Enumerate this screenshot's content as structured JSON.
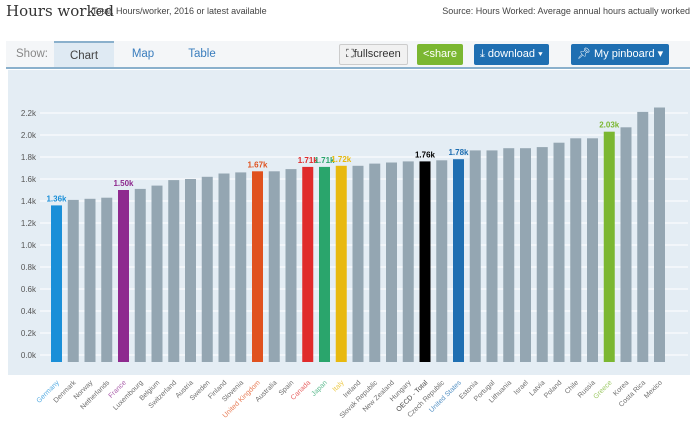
{
  "header": {
    "title": "Hours worked",
    "subtitle": "Total, Hours/worker, 2016 or latest available",
    "source": "Source: Hours Worked: Average annual hours actually worked"
  },
  "toolbar": {
    "show": "Show:",
    "tabs": [
      "Chart",
      "Map",
      "Table"
    ],
    "fullscreen": "fullscreen",
    "share": "share",
    "download": "download ▾",
    "pinboard": "My pinboard ▾"
  },
  "chart_data": {
    "type": "bar",
    "title": "Hours worked",
    "ylabel": "Hours/worker",
    "ylim": [
      0,
      2200
    ],
    "yticks": [
      "0.0k",
      "0.2k",
      "0.4k",
      "0.6k",
      "0.8k",
      "1.0k",
      "1.2k",
      "1.4k",
      "1.6k",
      "1.8k",
      "2.0k",
      "2.2k"
    ],
    "categories": [
      "Germany",
      "Denmark",
      "Norway",
      "Netherlands",
      "France",
      "Luxembourg",
      "Belgium",
      "Switzerland",
      "Austria",
      "Sweden",
      "Finland",
      "Slovenia",
      "United Kingdom",
      "Australia",
      "Spain",
      "Canada",
      "Japan",
      "Italy",
      "Ireland",
      "Slovak Republic",
      "New Zealand",
      "Hungary",
      "OECD - Total",
      "Czech Republic",
      "United States",
      "Estonia",
      "Portugal",
      "Lithuania",
      "Israel",
      "Latvia",
      "Poland",
      "Chile",
      "Russia",
      "Greece",
      "Korea",
      "Costa Rica",
      "Mexico"
    ],
    "values": [
      1360,
      1410,
      1420,
      1430,
      1500,
      1510,
      1540,
      1590,
      1600,
      1620,
      1650,
      1660,
      1670,
      1670,
      1690,
      1710,
      1710,
      1720,
      1720,
      1740,
      1750,
      1760,
      1760,
      1770,
      1780,
      1860,
      1860,
      1880,
      1880,
      1890,
      1930,
      1970,
      1970,
      2030,
      2070,
      2210,
      2250
    ],
    "highlights": {
      "Germany": {
        "color": "#1a8fd8",
        "label": "1.36k"
      },
      "France": {
        "color": "#8e2a8f",
        "label": "1.50k"
      },
      "United Kingdom": {
        "color": "#e0521f",
        "label": "1.67k"
      },
      "Canada": {
        "color": "#e02b2b",
        "label": "1.71k"
      },
      "Japan": {
        "color": "#2aa56c",
        "label": "1.71k"
      },
      "Italy": {
        "color": "#e8b90e",
        "label": "1.72k"
      },
      "OECD - Total": {
        "color": "#000000",
        "label": "1.76k"
      },
      "United States": {
        "color": "#1f6fb2",
        "label": "1.78k"
      },
      "Greece": {
        "color": "#7bb731",
        "label": "2.03k"
      }
    },
    "default_color": "#94a6b2"
  }
}
